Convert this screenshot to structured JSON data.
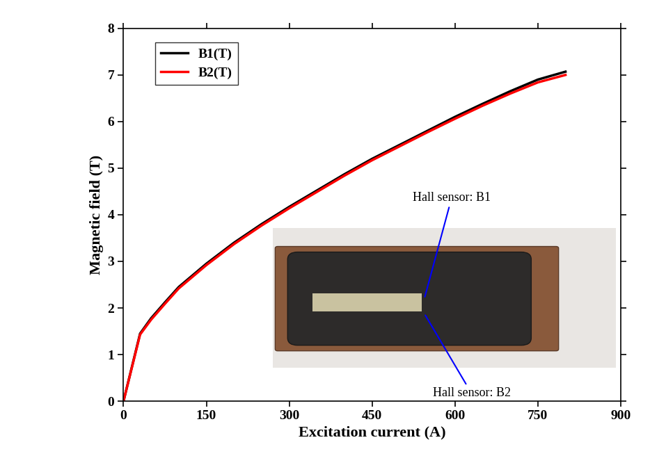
{
  "chart_data": {
    "type": "line",
    "x_label": "Excitation current (A)",
    "y_label": "Magnetic field (T)",
    "x": [
      0,
      30,
      50,
      75,
      100,
      150,
      200,
      250,
      300,
      350,
      400,
      450,
      500,
      550,
      600,
      650,
      700,
      750,
      800
    ],
    "series": [
      {
        "name": "B1(T)",
        "color": "#000000",
        "line_style": "solid",
        "values": [
          0,
          1.45,
          1.78,
          2.12,
          2.45,
          2.95,
          3.4,
          3.8,
          4.17,
          4.52,
          4.87,
          5.2,
          5.5,
          5.8,
          6.1,
          6.38,
          6.65,
          6.9,
          7.07
        ]
      },
      {
        "name": "B2(T)",
        "color": "#ff0000",
        "line_style": "solid",
        "values": [
          0,
          1.43,
          1.75,
          2.09,
          2.42,
          2.92,
          3.37,
          3.77,
          4.14,
          4.49,
          4.84,
          5.17,
          5.47,
          5.77,
          6.06,
          6.34,
          6.6,
          6.84,
          7.0
        ]
      }
    ],
    "xlim": [
      0,
      900
    ],
    "xticks": [
      0,
      150,
      300,
      450,
      600,
      750,
      900
    ],
    "ylim": [
      0,
      8
    ],
    "yticks": [
      0,
      1,
      2,
      3,
      4,
      5,
      6,
      7,
      8
    ],
    "legend": "upper left",
    "grid": false,
    "annotations": [
      "Hall sensor: B1",
      "Hall sensor: B2"
    ]
  }
}
